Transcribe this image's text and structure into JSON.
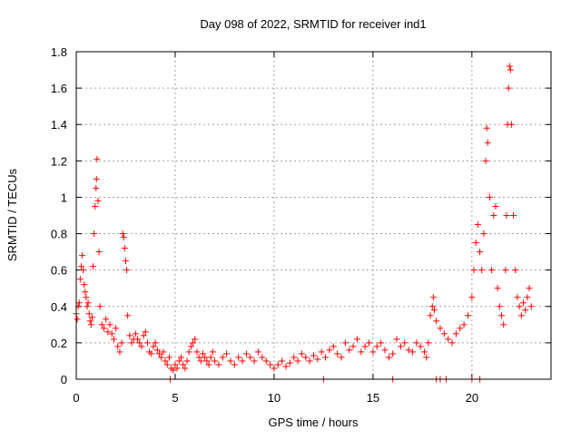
{
  "chart_data": {
    "type": "scatter",
    "title": "Day 098 of 2022, SRMTID for receiver ind1",
    "xlabel": "GPS time / hours",
    "ylabel": "SRMTID / TECUs",
    "xlim": [
      0,
      24
    ],
    "ylim": [
      0,
      1.8
    ],
    "x_ticks": [
      0,
      5,
      10,
      15,
      20
    ],
    "y_ticks": [
      0,
      0.2,
      0.4,
      0.6,
      0.8,
      1,
      1.2,
      1.4,
      1.6,
      1.8
    ],
    "x_tick_labels": [
      "0",
      "5",
      "10",
      "15",
      "20"
    ],
    "y_tick_labels": [
      "0",
      "0.2",
      "0.4",
      "0.6",
      "0.8",
      "1",
      "1.2",
      "1.4",
      "1.6",
      "1.8"
    ],
    "grid": true,
    "marker": "+",
    "series_color": "#ff0000",
    "series": [
      {
        "name": "SRMTID",
        "points": [
          [
            0.0,
            0.36
          ],
          [
            0.05,
            0.33
          ],
          [
            0.1,
            0.4
          ],
          [
            0.15,
            0.42
          ],
          [
            0.2,
            0.55
          ],
          [
            0.25,
            0.62
          ],
          [
            0.3,
            0.68
          ],
          [
            0.35,
            0.6
          ],
          [
            0.4,
            0.52
          ],
          [
            0.45,
            0.48
          ],
          [
            0.5,
            0.45
          ],
          [
            0.55,
            0.4
          ],
          [
            0.6,
            0.42
          ],
          [
            0.65,
            0.36
          ],
          [
            0.7,
            0.32
          ],
          [
            0.75,
            0.3
          ],
          [
            0.8,
            0.34
          ],
          [
            0.85,
            0.62
          ],
          [
            0.9,
            0.8
          ],
          [
            0.95,
            0.95
          ],
          [
            1.0,
            1.05
          ],
          [
            1.02,
            1.1
          ],
          [
            1.05,
            1.21
          ],
          [
            1.1,
            0.98
          ],
          [
            1.15,
            0.7
          ],
          [
            1.2,
            0.4
          ],
          [
            1.3,
            0.3
          ],
          [
            1.4,
            0.28
          ],
          [
            1.5,
            0.33
          ],
          [
            1.6,
            0.26
          ],
          [
            1.7,
            0.3
          ],
          [
            1.8,
            0.25
          ],
          [
            1.9,
            0.22
          ],
          [
            2.0,
            0.28
          ],
          [
            2.1,
            0.18
          ],
          [
            2.2,
            0.15
          ],
          [
            2.3,
            0.2
          ],
          [
            2.35,
            0.8
          ],
          [
            2.4,
            0.78
          ],
          [
            2.45,
            0.72
          ],
          [
            2.5,
            0.65
          ],
          [
            2.55,
            0.6
          ],
          [
            2.6,
            0.35
          ],
          [
            2.7,
            0.24
          ],
          [
            2.8,
            0.2
          ],
          [
            2.9,
            0.22
          ],
          [
            3.0,
            0.25
          ],
          [
            3.1,
            0.22
          ],
          [
            3.2,
            0.2
          ],
          [
            3.3,
            0.18
          ],
          [
            3.4,
            0.24
          ],
          [
            3.5,
            0.26
          ],
          [
            3.6,
            0.2
          ],
          [
            3.7,
            0.15
          ],
          [
            3.8,
            0.14
          ],
          [
            3.9,
            0.18
          ],
          [
            4.0,
            0.2
          ],
          [
            4.1,
            0.16
          ],
          [
            4.2,
            0.14
          ],
          [
            4.3,
            0.12
          ],
          [
            4.4,
            0.15
          ],
          [
            4.5,
            0.1
          ],
          [
            4.6,
            0.08
          ],
          [
            4.7,
            0.12
          ],
          [
            4.8,
            0.06
          ],
          [
            4.9,
            0.05
          ],
          [
            5.0,
            0.08
          ],
          [
            5.1,
            0.06
          ],
          [
            5.2,
            0.1
          ],
          [
            5.3,
            0.12
          ],
          [
            5.4,
            0.08
          ],
          [
            5.5,
            0.06
          ],
          [
            5.6,
            0.1
          ],
          [
            5.7,
            0.15
          ],
          [
            5.8,
            0.18
          ],
          [
            5.9,
            0.2
          ],
          [
            6.0,
            0.22
          ],
          [
            6.1,
            0.15
          ],
          [
            6.2,
            0.12
          ],
          [
            6.3,
            0.1
          ],
          [
            6.4,
            0.14
          ],
          [
            6.5,
            0.12
          ],
          [
            6.6,
            0.1
          ],
          [
            6.7,
            0.08
          ],
          [
            6.8,
            0.12
          ],
          [
            6.9,
            0.15
          ],
          [
            7.0,
            0.1
          ],
          [
            7.2,
            0.08
          ],
          [
            7.4,
            0.12
          ],
          [
            7.6,
            0.14
          ],
          [
            7.8,
            0.1
          ],
          [
            8.0,
            0.08
          ],
          [
            8.2,
            0.12
          ],
          [
            8.4,
            0.1
          ],
          [
            8.6,
            0.14
          ],
          [
            8.8,
            0.12
          ],
          [
            9.0,
            0.1
          ],
          [
            9.2,
            0.15
          ],
          [
            9.4,
            0.12
          ],
          [
            9.6,
            0.1
          ],
          [
            9.8,
            0.08
          ],
          [
            10.0,
            0.06
          ],
          [
            10.2,
            0.08
          ],
          [
            10.4,
            0.1
          ],
          [
            10.6,
            0.07
          ],
          [
            10.8,
            0.09
          ],
          [
            11.0,
            0.12
          ],
          [
            11.2,
            0.1
          ],
          [
            11.4,
            0.14
          ],
          [
            11.6,
            0.12
          ],
          [
            11.8,
            0.1
          ],
          [
            12.0,
            0.13
          ],
          [
            12.2,
            0.11
          ],
          [
            12.4,
            0.15
          ],
          [
            12.5,
            0.0
          ],
          [
            12.6,
            0.12
          ],
          [
            12.8,
            0.16
          ],
          [
            13.0,
            0.18
          ],
          [
            13.2,
            0.14
          ],
          [
            13.4,
            0.12
          ],
          [
            13.6,
            0.2
          ],
          [
            13.8,
            0.16
          ],
          [
            14.0,
            0.18
          ],
          [
            14.2,
            0.22
          ],
          [
            14.4,
            0.15
          ],
          [
            14.6,
            0.18
          ],
          [
            14.8,
            0.2
          ],
          [
            15.0,
            0.15
          ],
          [
            15.2,
            0.18
          ],
          [
            15.4,
            0.2
          ],
          [
            15.6,
            0.16
          ],
          [
            15.8,
            0.12
          ],
          [
            16.0,
            0.14
          ],
          [
            16.2,
            0.22
          ],
          [
            16.4,
            0.18
          ],
          [
            16.6,
            0.2
          ],
          [
            16.8,
            0.16
          ],
          [
            17.0,
            0.15
          ],
          [
            17.2,
            0.2
          ],
          [
            17.4,
            0.18
          ],
          [
            17.6,
            0.15
          ],
          [
            17.7,
            0.12
          ],
          [
            17.8,
            0.2
          ],
          [
            17.9,
            0.35
          ],
          [
            18.0,
            0.4
          ],
          [
            18.05,
            0.45
          ],
          [
            18.1,
            0.38
          ],
          [
            18.2,
            0.32
          ],
          [
            18.4,
            0.28
          ],
          [
            18.6,
            0.25
          ],
          [
            18.8,
            0.22
          ],
          [
            19.0,
            0.2
          ],
          [
            19.2,
            0.25
          ],
          [
            19.4,
            0.28
          ],
          [
            19.6,
            0.3
          ],
          [
            19.8,
            0.35
          ],
          [
            20.0,
            0.45
          ],
          [
            20.1,
            0.6
          ],
          [
            20.2,
            0.75
          ],
          [
            20.3,
            0.85
          ],
          [
            20.4,
            0.7
          ],
          [
            20.5,
            0.6
          ],
          [
            20.6,
            0.8
          ],
          [
            20.7,
            1.2
          ],
          [
            20.75,
            1.38
          ],
          [
            20.8,
            1.3
          ],
          [
            20.9,
            1.0
          ],
          [
            21.0,
            0.6
          ],
          [
            21.1,
            0.9
          ],
          [
            21.2,
            0.95
          ],
          [
            21.3,
            0.5
          ],
          [
            21.4,
            0.4
          ],
          [
            21.5,
            0.35
          ],
          [
            21.6,
            0.3
          ],
          [
            21.7,
            0.6
          ],
          [
            21.75,
            0.9
          ],
          [
            21.8,
            1.4
          ],
          [
            21.85,
            1.6
          ],
          [
            21.9,
            1.72
          ],
          [
            21.95,
            1.7
          ],
          [
            22.0,
            1.4
          ],
          [
            22.1,
            0.9
          ],
          [
            22.2,
            0.6
          ],
          [
            22.3,
            0.45
          ],
          [
            22.4,
            0.4
          ],
          [
            22.5,
            0.35
          ],
          [
            22.6,
            0.42
          ],
          [
            22.7,
            0.38
          ],
          [
            22.8,
            0.45
          ],
          [
            22.9,
            0.5
          ],
          [
            23.0,
            0.4
          ],
          [
            18.2,
            0.0
          ],
          [
            18.4,
            0.0
          ],
          [
            18.7,
            0.0
          ],
          [
            16.0,
            0.0
          ],
          [
            20.0,
            0.0
          ],
          [
            20.4,
            0.0
          ],
          [
            4.75,
            0.0
          ]
        ]
      }
    ]
  }
}
